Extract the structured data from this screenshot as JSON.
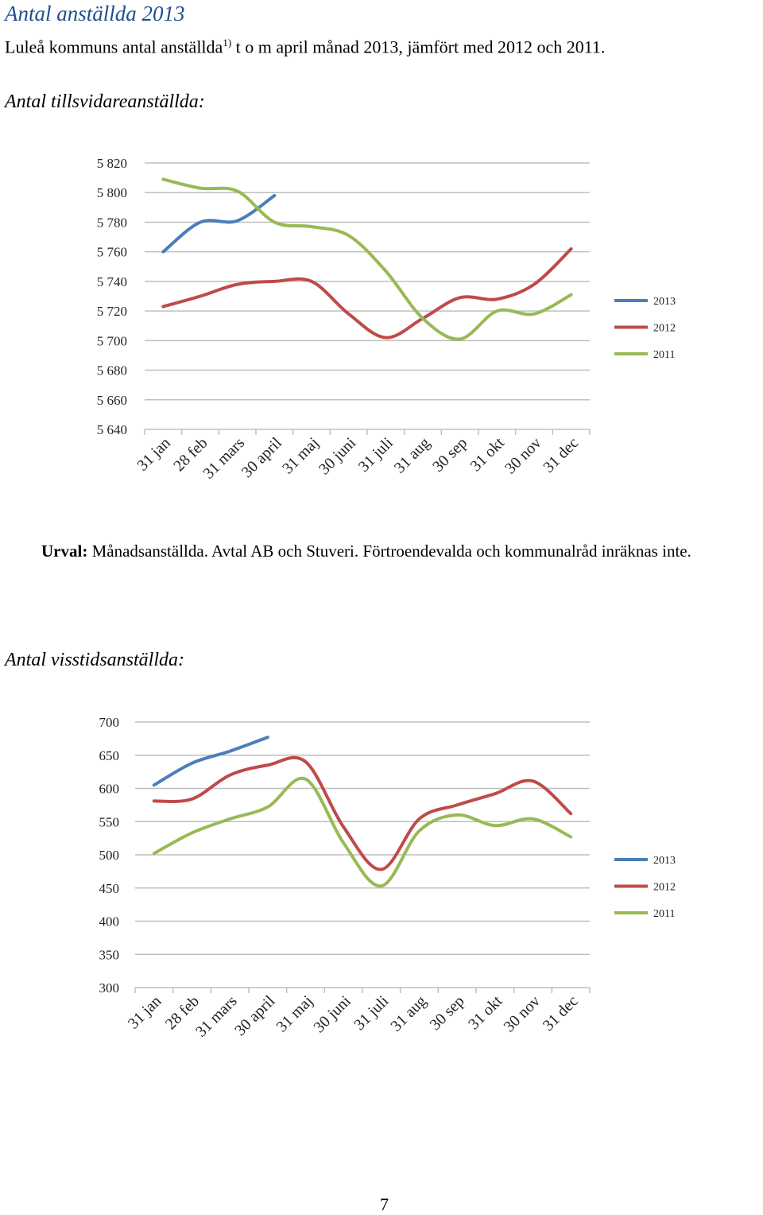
{
  "title": "Antal anställda 2013",
  "subtitle": {
    "before": "Luleå kommuns antal anställda",
    "sup": "1)",
    "after": " t o m april månad 2013, jämfört med 2012 och 2011."
  },
  "sections": [
    "Antal tillsvidareanställda:",
    "Antal visstidsanställda:"
  ],
  "footnote": {
    "marker": "1)",
    "label": "Urval:",
    "text": " Månadsanställda. Avtal AB och Stuveri. Förtroendevalda och kommunalråd inräknas inte."
  },
  "page_number": "7",
  "chart_data": [
    {
      "type": "line",
      "categories": [
        "31 jan",
        "28 feb",
        "31 mars",
        "30 april",
        "31 maj",
        "30 juni",
        "31 juli",
        "31 aug",
        "30 sep",
        "31 okt",
        "30 nov",
        "31 dec"
      ],
      "series": [
        {
          "name": "2013",
          "color": "#4a7ebb",
          "values": [
            5760,
            5780,
            5781,
            5798,
            null,
            null,
            null,
            null,
            null,
            null,
            null,
            null
          ]
        },
        {
          "name": "2012",
          "color": "#be4b48",
          "values": [
            5723,
            5730,
            5738,
            5740,
            5740,
            5718,
            5702,
            5715,
            5729,
            5728,
            5738,
            5762
          ]
        },
        {
          "name": "2011",
          "color": "#98b954",
          "values": [
            5809,
            5803,
            5801,
            5780,
            5777,
            5771,
            5747,
            5715,
            5701,
            5720,
            5718,
            5731
          ]
        }
      ],
      "ylim": [
        5640,
        5820
      ],
      "yticks": [
        {
          "value": 5640,
          "label": "5 640"
        },
        {
          "value": 5660,
          "label": "5 660"
        },
        {
          "value": 5680,
          "label": "5 680"
        },
        {
          "value": 5700,
          "label": "5 700"
        },
        {
          "value": 5720,
          "label": "5 720"
        },
        {
          "value": 5740,
          "label": "5 740"
        },
        {
          "value": 5760,
          "label": "5 760"
        },
        {
          "value": 5780,
          "label": "5 780"
        },
        {
          "value": 5800,
          "label": "5 800"
        },
        {
          "value": 5820,
          "label": "5 820"
        }
      ],
      "grid": true,
      "legend": "right"
    },
    {
      "type": "line",
      "categories": [
        "31 jan",
        "28 feb",
        "31 mars",
        "30 april",
        "31 maj",
        "30 juni",
        "31 juli",
        "31 aug",
        "30 sep",
        "31 okt",
        "30 nov",
        "31 dec"
      ],
      "series": [
        {
          "name": "2013",
          "color": "#4a7ebb",
          "values": [
            605,
            638,
            656,
            677,
            null,
            null,
            null,
            null,
            null,
            null,
            null,
            null
          ]
        },
        {
          "name": "2012",
          "color": "#be4b48",
          "values": [
            581,
            584,
            620,
            635,
            640,
            542,
            478,
            554,
            575,
            592,
            611,
            562
          ]
        },
        {
          "name": "2011",
          "color": "#98b954",
          "values": [
            502,
            533,
            554,
            572,
            614,
            518,
            453,
            536,
            560,
            544,
            554,
            527
          ]
        }
      ],
      "ylim": [
        300,
        700
      ],
      "yticks": [
        300,
        350,
        400,
        450,
        500,
        550,
        600,
        650,
        700
      ],
      "grid": true,
      "legend": "right"
    }
  ]
}
